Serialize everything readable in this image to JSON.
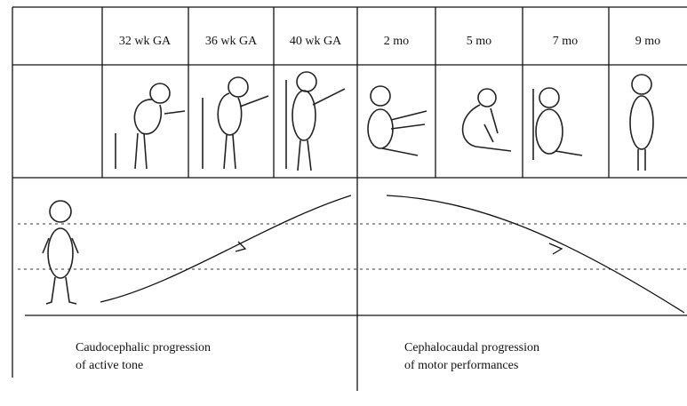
{
  "header": {
    "columns": [
      "32 wk GA",
      "36 wk GA",
      "40 wk GA",
      "2 mo",
      "5 mo",
      "7 mo",
      "9 mo"
    ]
  },
  "captions": {
    "left": [
      "Caudocephalic progression",
      "of active tone"
    ],
    "right": [
      "Cephalocaudal progression",
      "of motor performances"
    ]
  }
}
